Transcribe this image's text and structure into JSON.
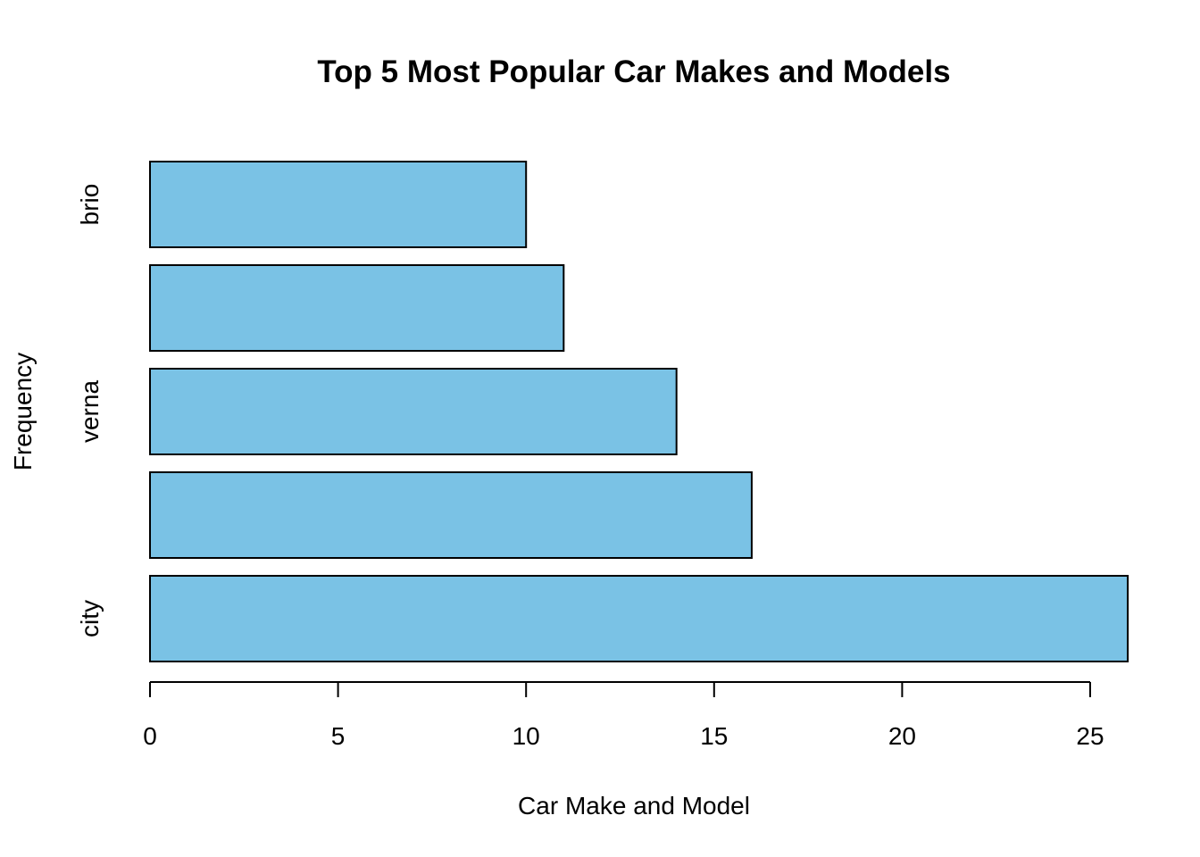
{
  "chart_data": {
    "type": "bar",
    "orientation": "horizontal",
    "title": "Top 5 Most Popular Car Makes and Models",
    "xlabel": "Car Make and Model",
    "ylabel": "Frequency",
    "categories": [
      "city",
      "",
      "verna",
      "",
      "brio"
    ],
    "values": [
      26,
      16,
      14,
      11,
      10
    ],
    "xlim": [
      0,
      26
    ],
    "x_ticks": [
      0,
      5,
      10,
      15,
      20,
      25
    ],
    "bar_color": "#7AC2E5",
    "grid": false
  }
}
